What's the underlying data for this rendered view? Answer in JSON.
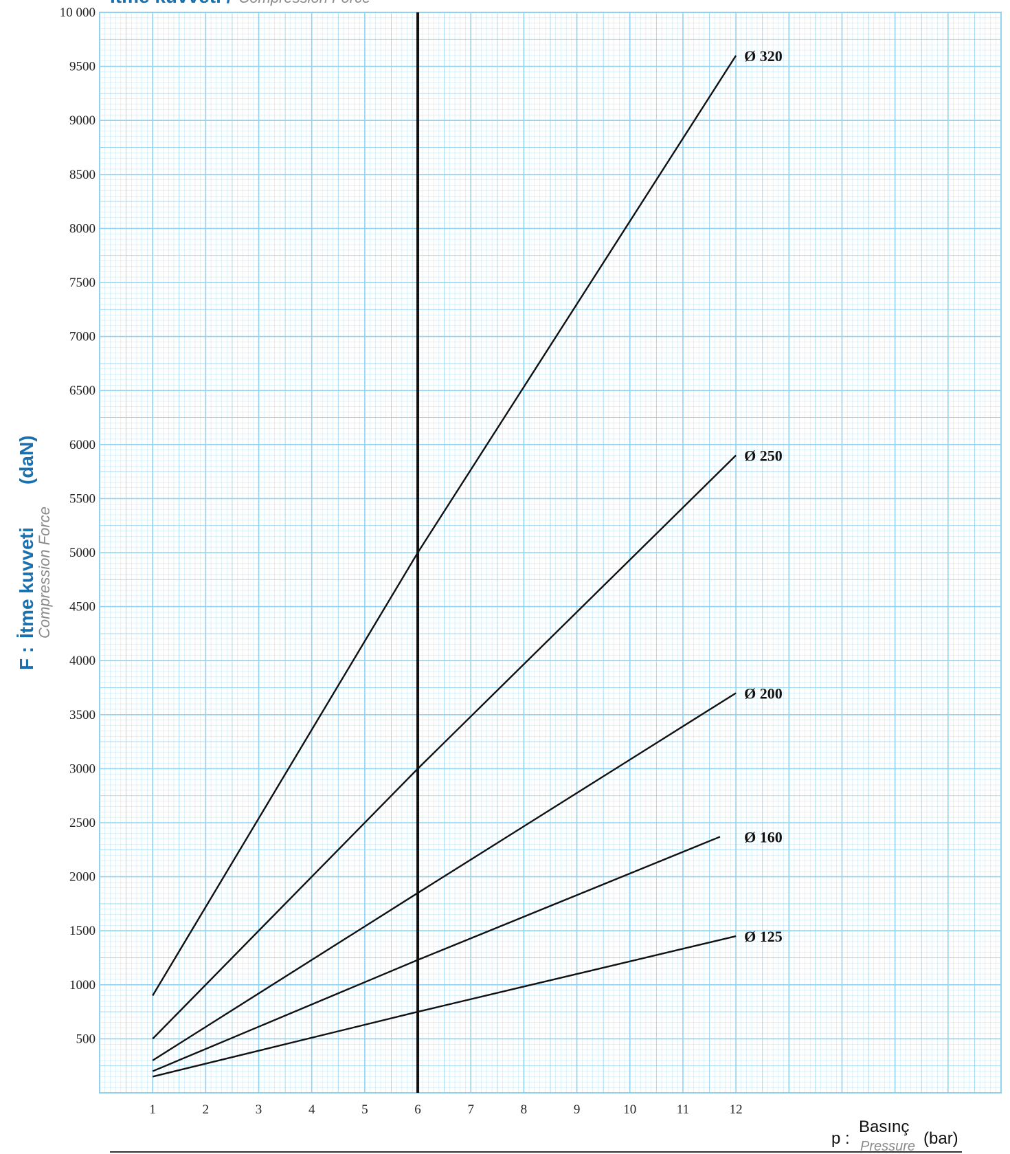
{
  "chart_data": {
    "type": "line",
    "title": "İtme kuvveti /",
    "title_sub": "Compression Force",
    "ylabel_prefix": "F :",
    "ylabel": "İtme kuvveti",
    "ylabel_sub": "Compression Force",
    "ylabel_unit": "(daN)",
    "xlabel_prefix": "p :",
    "xlabel": "Basınç",
    "xlabel_sub": "Pressure",
    "xlabel_unit": "(bar)",
    "xlim": [
      0,
      17
    ],
    "ylim": [
      0,
      10000
    ],
    "x_ticks": [
      "1",
      "2",
      "3",
      "4",
      "5",
      "6",
      "7",
      "8",
      "9",
      "10",
      "11",
      "12"
    ],
    "y_ticks": [
      "500",
      "1000",
      "1500",
      "2000",
      "2500",
      "3000",
      "3500",
      "4000",
      "4500",
      "5000",
      "5500",
      "6000",
      "6500",
      "7000",
      "7500",
      "8000",
      "8500",
      "9000",
      "9500",
      "10  000"
    ],
    "y_tick_values": [
      500,
      1000,
      1500,
      2000,
      2500,
      3000,
      3500,
      4000,
      4500,
      5000,
      5500,
      6000,
      6500,
      7000,
      7500,
      8000,
      8500,
      9000,
      9500,
      10000
    ],
    "grid": true,
    "reference_line_x": 6,
    "colors": {
      "grid": "#8fd3f0",
      "line": "#111111",
      "accent": "#1a6fae"
    },
    "series": [
      {
        "name": "Ø  320",
        "x": [
          1,
          6,
          12
        ],
        "y": [
          900,
          5000,
          9600
        ]
      },
      {
        "name": "Ø  250",
        "x": [
          1,
          6,
          12
        ],
        "y": [
          500,
          3000,
          5900
        ]
      },
      {
        "name": "Ø  200",
        "x": [
          1,
          6,
          12
        ],
        "y": [
          300,
          1850,
          3700
        ]
      },
      {
        "name": "Ø  160",
        "x": [
          1,
          6,
          11.7
        ],
        "y": [
          200,
          1230,
          2370
        ]
      },
      {
        "name": "Ø  125",
        "x": [
          1,
          6,
          12
        ],
        "y": [
          150,
          750,
          1450
        ]
      }
    ]
  }
}
